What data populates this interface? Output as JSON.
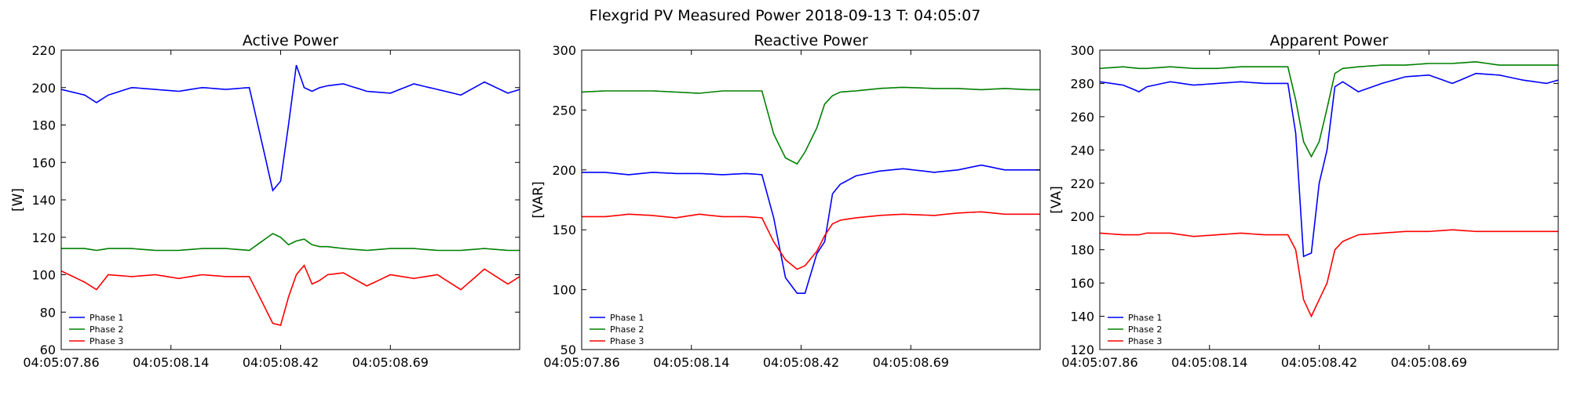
{
  "figure": {
    "title": "Flexgrid PV Measured Power 2018-09-13 T: 04:05:07"
  },
  "colors": {
    "phase1": "#0000ff",
    "phase2": "#008000",
    "phase3": "#ff0000"
  },
  "chart_data": [
    {
      "type": "line",
      "title": "Active Power",
      "ylabel": "[W]",
      "xlabel": "",
      "ylim": [
        60,
        220
      ],
      "yticks": [
        60,
        80,
        100,
        120,
        140,
        160,
        180,
        200,
        220
      ],
      "xlim": [
        0,
        117
      ],
      "xticks": [
        {
          "x": 0,
          "label": "04:05:07.86"
        },
        {
          "x": 28,
          "label": "04:05:08.14"
        },
        {
          "x": 56,
          "label": "04:05:08.42"
        },
        {
          "x": 84,
          "label": "04:05:08.69"
        }
      ],
      "grid": false,
      "legend": "bottom-left",
      "x_anchor": [
        0,
        6,
        9,
        12,
        18,
        24,
        30,
        36,
        42,
        48,
        54,
        56,
        58,
        60,
        62,
        64,
        66,
        68,
        72,
        78,
        84,
        90,
        96,
        102,
        108,
        114,
        117
      ],
      "series": [
        {
          "name": "Phase 1",
          "color_key": "phase1",
          "values": [
            199,
            196,
            192,
            196,
            200,
            199,
            198,
            200,
            199,
            200,
            145,
            150,
            180,
            212,
            200,
            198,
            200,
            201,
            202,
            198,
            197,
            202,
            199,
            196,
            203,
            197,
            199
          ]
        },
        {
          "name": "Phase 2",
          "color_key": "phase2",
          "values": [
            114,
            114,
            113,
            114,
            114,
            113,
            113,
            114,
            114,
            113,
            122,
            120,
            116,
            118,
            119,
            116,
            115,
            115,
            114,
            113,
            114,
            114,
            113,
            113,
            114,
            113,
            113
          ]
        },
        {
          "name": "Phase 3",
          "color_key": "phase3",
          "values": [
            102,
            96,
            92,
            100,
            99,
            100,
            98,
            100,
            99,
            99,
            74,
            73,
            88,
            100,
            105,
            95,
            97,
            100,
            101,
            94,
            100,
            98,
            100,
            92,
            103,
            95,
            99
          ]
        }
      ]
    },
    {
      "type": "line",
      "title": "Reactive Power",
      "ylabel": "[VAR]",
      "xlabel": "",
      "ylim": [
        50,
        300
      ],
      "yticks": [
        50,
        100,
        150,
        200,
        250,
        300
      ],
      "xlim": [
        0,
        117
      ],
      "xticks": [
        {
          "x": 0,
          "label": "04:05:07.86"
        },
        {
          "x": 28,
          "label": "04:05:08.14"
        },
        {
          "x": 56,
          "label": "04:05:08.42"
        },
        {
          "x": 84,
          "label": "04:05:08.69"
        }
      ],
      "grid": false,
      "legend": "bottom-left",
      "x_anchor": [
        0,
        6,
        12,
        18,
        24,
        30,
        36,
        42,
        46,
        49,
        52,
        55,
        57,
        60,
        62,
        64,
        66,
        70,
        76,
        82,
        90,
        96,
        102,
        108,
        114,
        117
      ],
      "series": [
        {
          "name": "Phase 1",
          "color_key": "phase1",
          "values": [
            198,
            198,
            196,
            198,
            197,
            197,
            196,
            197,
            196,
            160,
            110,
            97,
            97,
            130,
            140,
            180,
            188,
            195,
            199,
            201,
            198,
            200,
            204,
            200,
            200,
            200
          ]
        },
        {
          "name": "Phase 2",
          "color_key": "phase2",
          "values": [
            265,
            266,
            266,
            266,
            265,
            264,
            266,
            266,
            266,
            230,
            210,
            205,
            215,
            235,
            255,
            262,
            265,
            266,
            268,
            269,
            268,
            268,
            267,
            268,
            267,
            267
          ]
        },
        {
          "name": "Phase 3",
          "color_key": "phase3",
          "values": [
            161,
            161,
            163,
            162,
            160,
            163,
            161,
            161,
            160,
            140,
            125,
            117,
            120,
            132,
            145,
            155,
            158,
            160,
            162,
            163,
            162,
            164,
            165,
            163,
            163,
            163
          ]
        }
      ]
    },
    {
      "type": "line",
      "title": "Apparent Power",
      "ylabel": "[VA]",
      "xlabel": "",
      "ylim": [
        120,
        300
      ],
      "yticks": [
        120,
        140,
        160,
        180,
        200,
        220,
        240,
        260,
        280,
        300
      ],
      "xlim": [
        0,
        117
      ],
      "xticks": [
        {
          "x": 0,
          "label": "04:05:07.86"
        },
        {
          "x": 28,
          "label": "04:05:08.14"
        },
        {
          "x": 56,
          "label": "04:05:08.42"
        },
        {
          "x": 84,
          "label": "04:05:08.69"
        }
      ],
      "grid": false,
      "legend": "bottom-left",
      "x_anchor": [
        0,
        6,
        10,
        12,
        18,
        24,
        30,
        36,
        42,
        48,
        50,
        52,
        54,
        56,
        58,
        60,
        62,
        66,
        72,
        78,
        84,
        90,
        96,
        102,
        108,
        114,
        117
      ],
      "series": [
        {
          "name": "Phase 1",
          "color_key": "phase1",
          "values": [
            281,
            279,
            275,
            278,
            281,
            279,
            280,
            281,
            280,
            280,
            250,
            176,
            178,
            220,
            240,
            278,
            281,
            275,
            280,
            284,
            285,
            280,
            286,
            285,
            282,
            280,
            282
          ]
        },
        {
          "name": "Phase 2",
          "color_key": "phase2",
          "values": [
            289,
            290,
            289,
            289,
            290,
            289,
            289,
            290,
            290,
            290,
            270,
            245,
            236,
            245,
            265,
            286,
            289,
            290,
            291,
            291,
            292,
            292,
            293,
            291,
            291,
            291,
            291
          ]
        },
        {
          "name": "Phase 3",
          "color_key": "phase3",
          "values": [
            190,
            189,
            189,
            190,
            190,
            188,
            189,
            190,
            189,
            189,
            180,
            150,
            140,
            150,
            160,
            180,
            185,
            189,
            190,
            191,
            191,
            192,
            191,
            191,
            191,
            191,
            191
          ]
        }
      ]
    }
  ]
}
